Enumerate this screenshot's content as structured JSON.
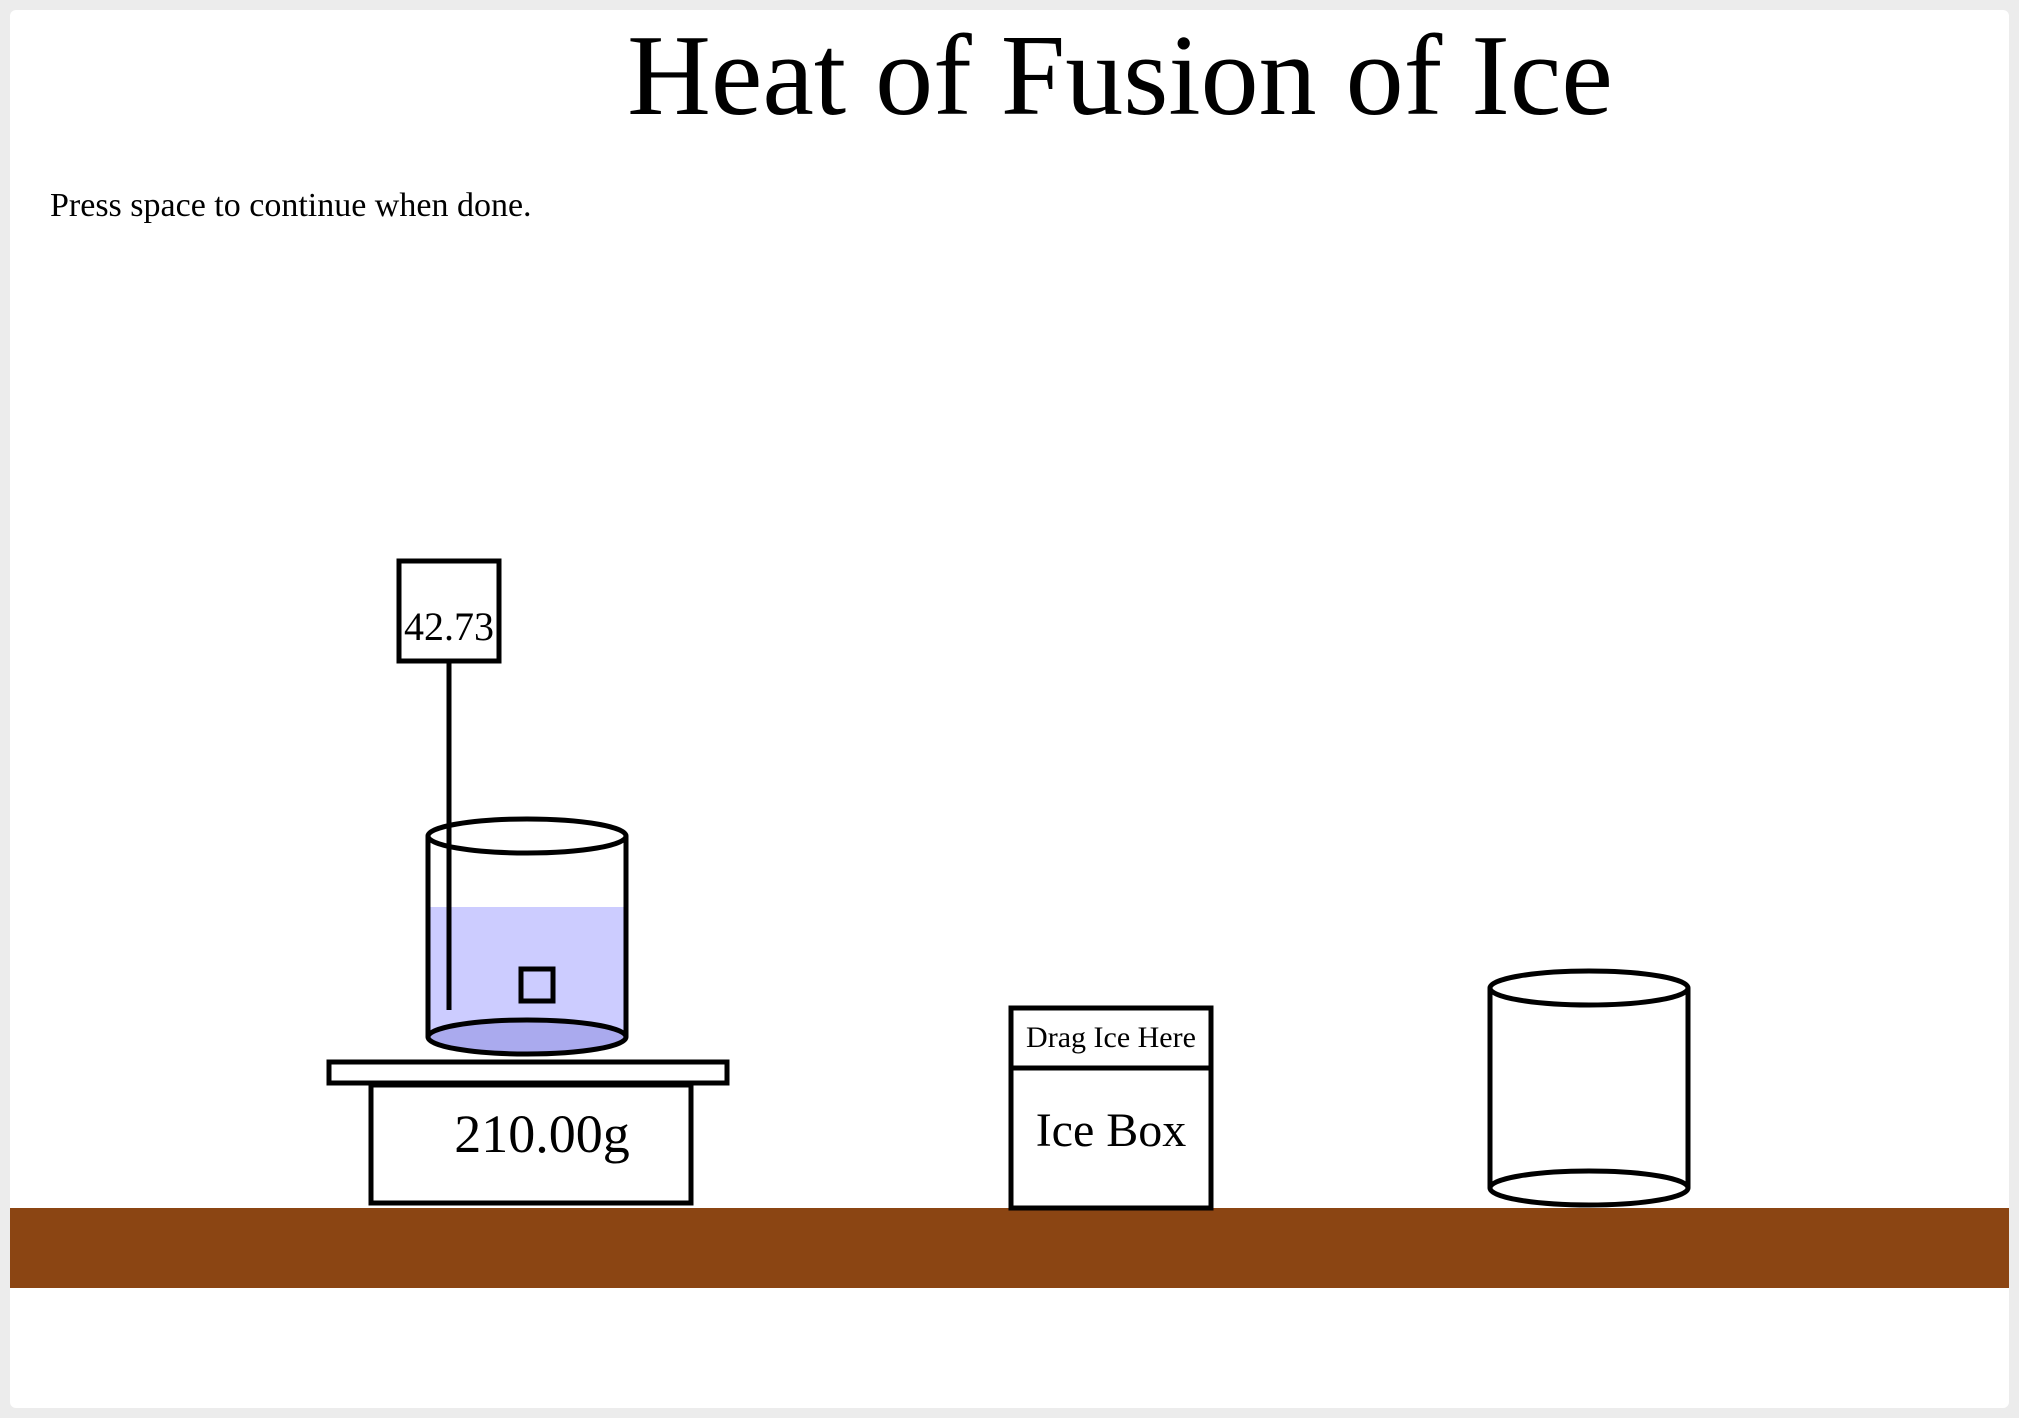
{
  "title": "Heat of Fusion of Ice",
  "instruction": "Press space to continue when done.",
  "thermometer": {
    "reading": "42.73"
  },
  "scale": {
    "reading": "210.00g"
  },
  "ice_box": {
    "drop_label": "Drag Ice Here",
    "label": "Ice Box"
  },
  "beaker_on_scale": {
    "water_fill_fraction": 0.65,
    "ice_cubes": 1
  },
  "colors": {
    "table": "#8B4513",
    "water": "#ccccff",
    "water_bottom": "#aaaaee",
    "outline": "#000000",
    "background": "#ffffff"
  }
}
